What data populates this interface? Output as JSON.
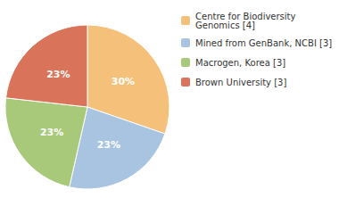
{
  "chart_data": {
    "type": "pie",
    "categories": [
      "Centre for Biodiversity\nGenomics [4]",
      "Mined from GenBank, NCBI [3]",
      "Macrogen, Korea [3]",
      "Brown University [3]"
    ],
    "values": [
      30,
      23,
      23,
      23
    ],
    "value_labels": [
      "30%",
      "23%",
      "23%",
      "23%"
    ],
    "colors": [
      "#F5C07A",
      "#A8C4E0",
      "#A8C87A",
      "#D9745A"
    ],
    "data_labels": true,
    "legend": "upper right"
  }
}
